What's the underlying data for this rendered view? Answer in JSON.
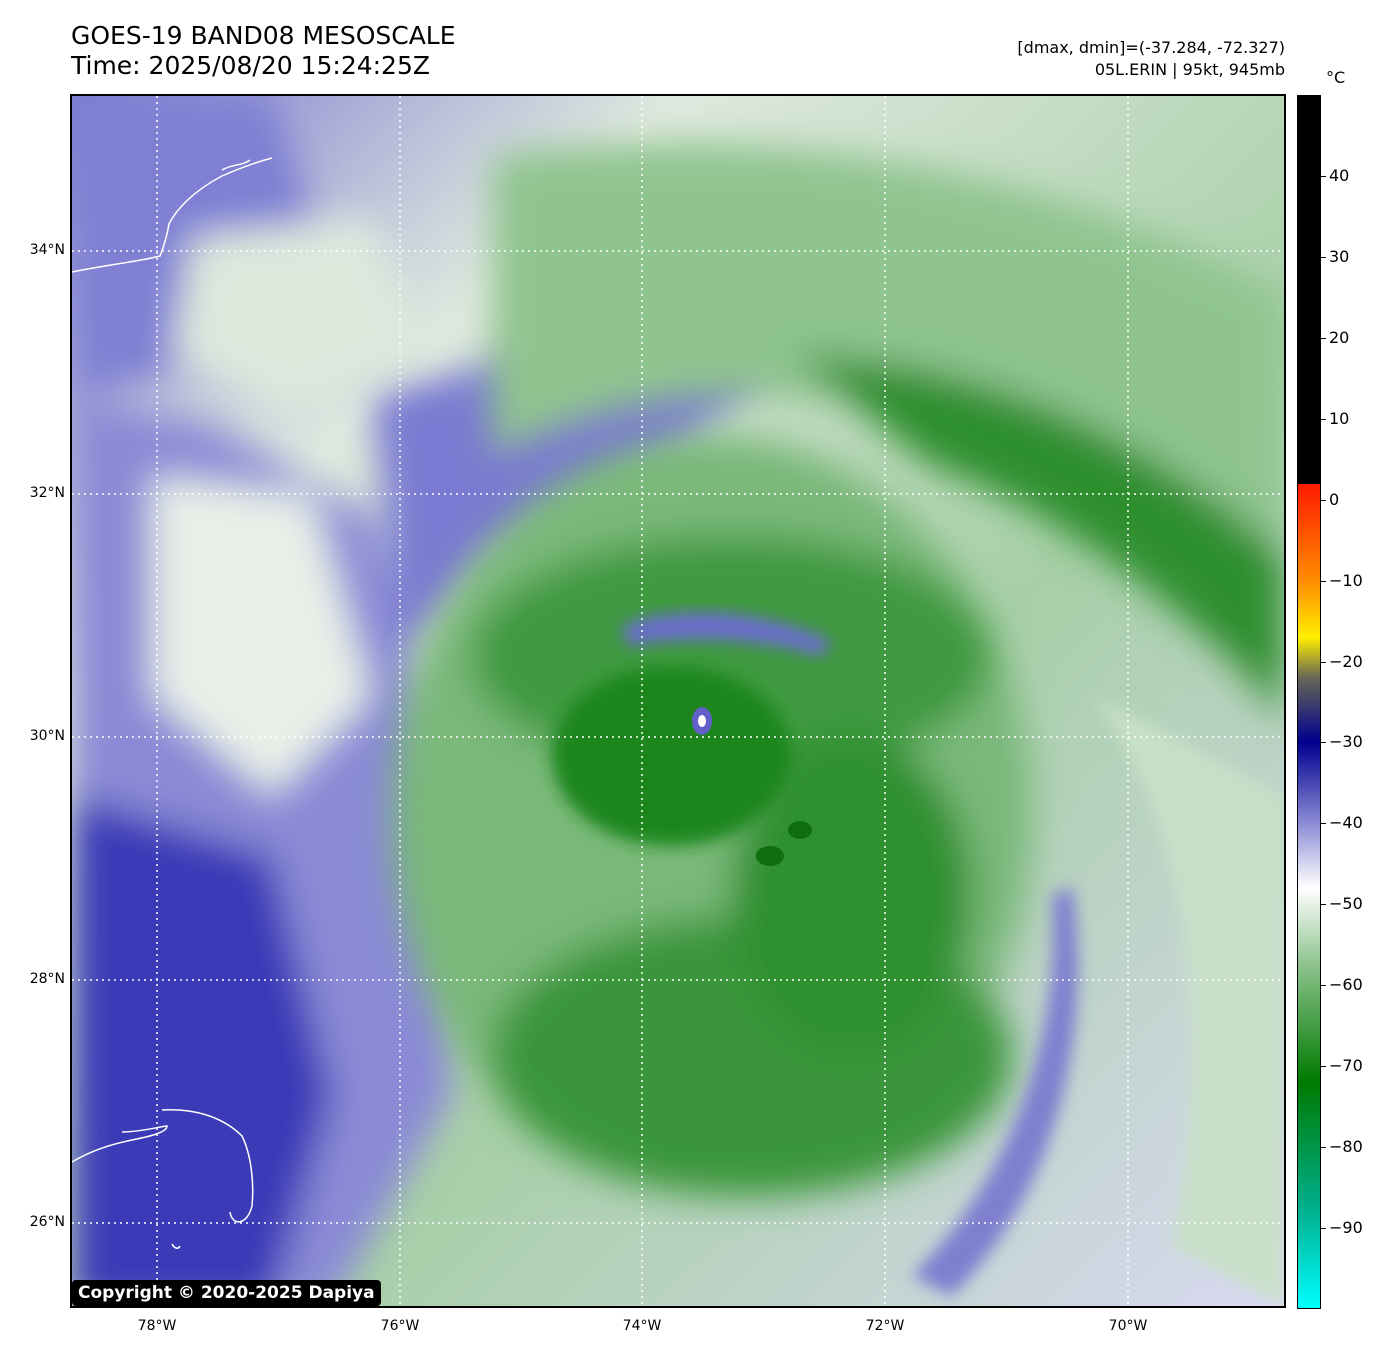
{
  "header": {
    "title": "GOES-19 BAND08 MESOSCALE",
    "subtitle": "Time: 2025/08/20 15:24:25Z",
    "stats": "[dmax, dmin]=(-37.284, -72.327)",
    "storm": "05L.ERIN | 95kt, 945mb"
  },
  "map": {
    "lat_labels": [
      "34°N",
      "32°N",
      "30°N",
      "28°N",
      "26°N"
    ],
    "lon_labels": [
      "78°W",
      "76°W",
      "74°W",
      "72°W",
      "70°W"
    ],
    "copyright": "Copyright © 2020-2025 Dapiya"
  },
  "colorbar": {
    "unit": "°C",
    "tick_labels": [
      "40",
      "30",
      "20",
      "10",
      "0",
      "−10",
      "−20",
      "−30",
      "−40",
      "−50",
      "−60",
      "−70",
      "−80",
      "−90"
    ],
    "scale_min": -100,
    "scale_max": 50,
    "colors": {
      "warm": "#000000",
      "red": "#ff1a00",
      "orange": "#ff8c00",
      "yellow": "#ffee00",
      "gray": "#666655",
      "blue": "#00008f",
      "light_blue": "#8c8cd6",
      "white": "#ffffff",
      "light_green": "#88c088",
      "green": "#007a00",
      "teal": "#00b090",
      "cyan": "#00ffff"
    }
  }
}
